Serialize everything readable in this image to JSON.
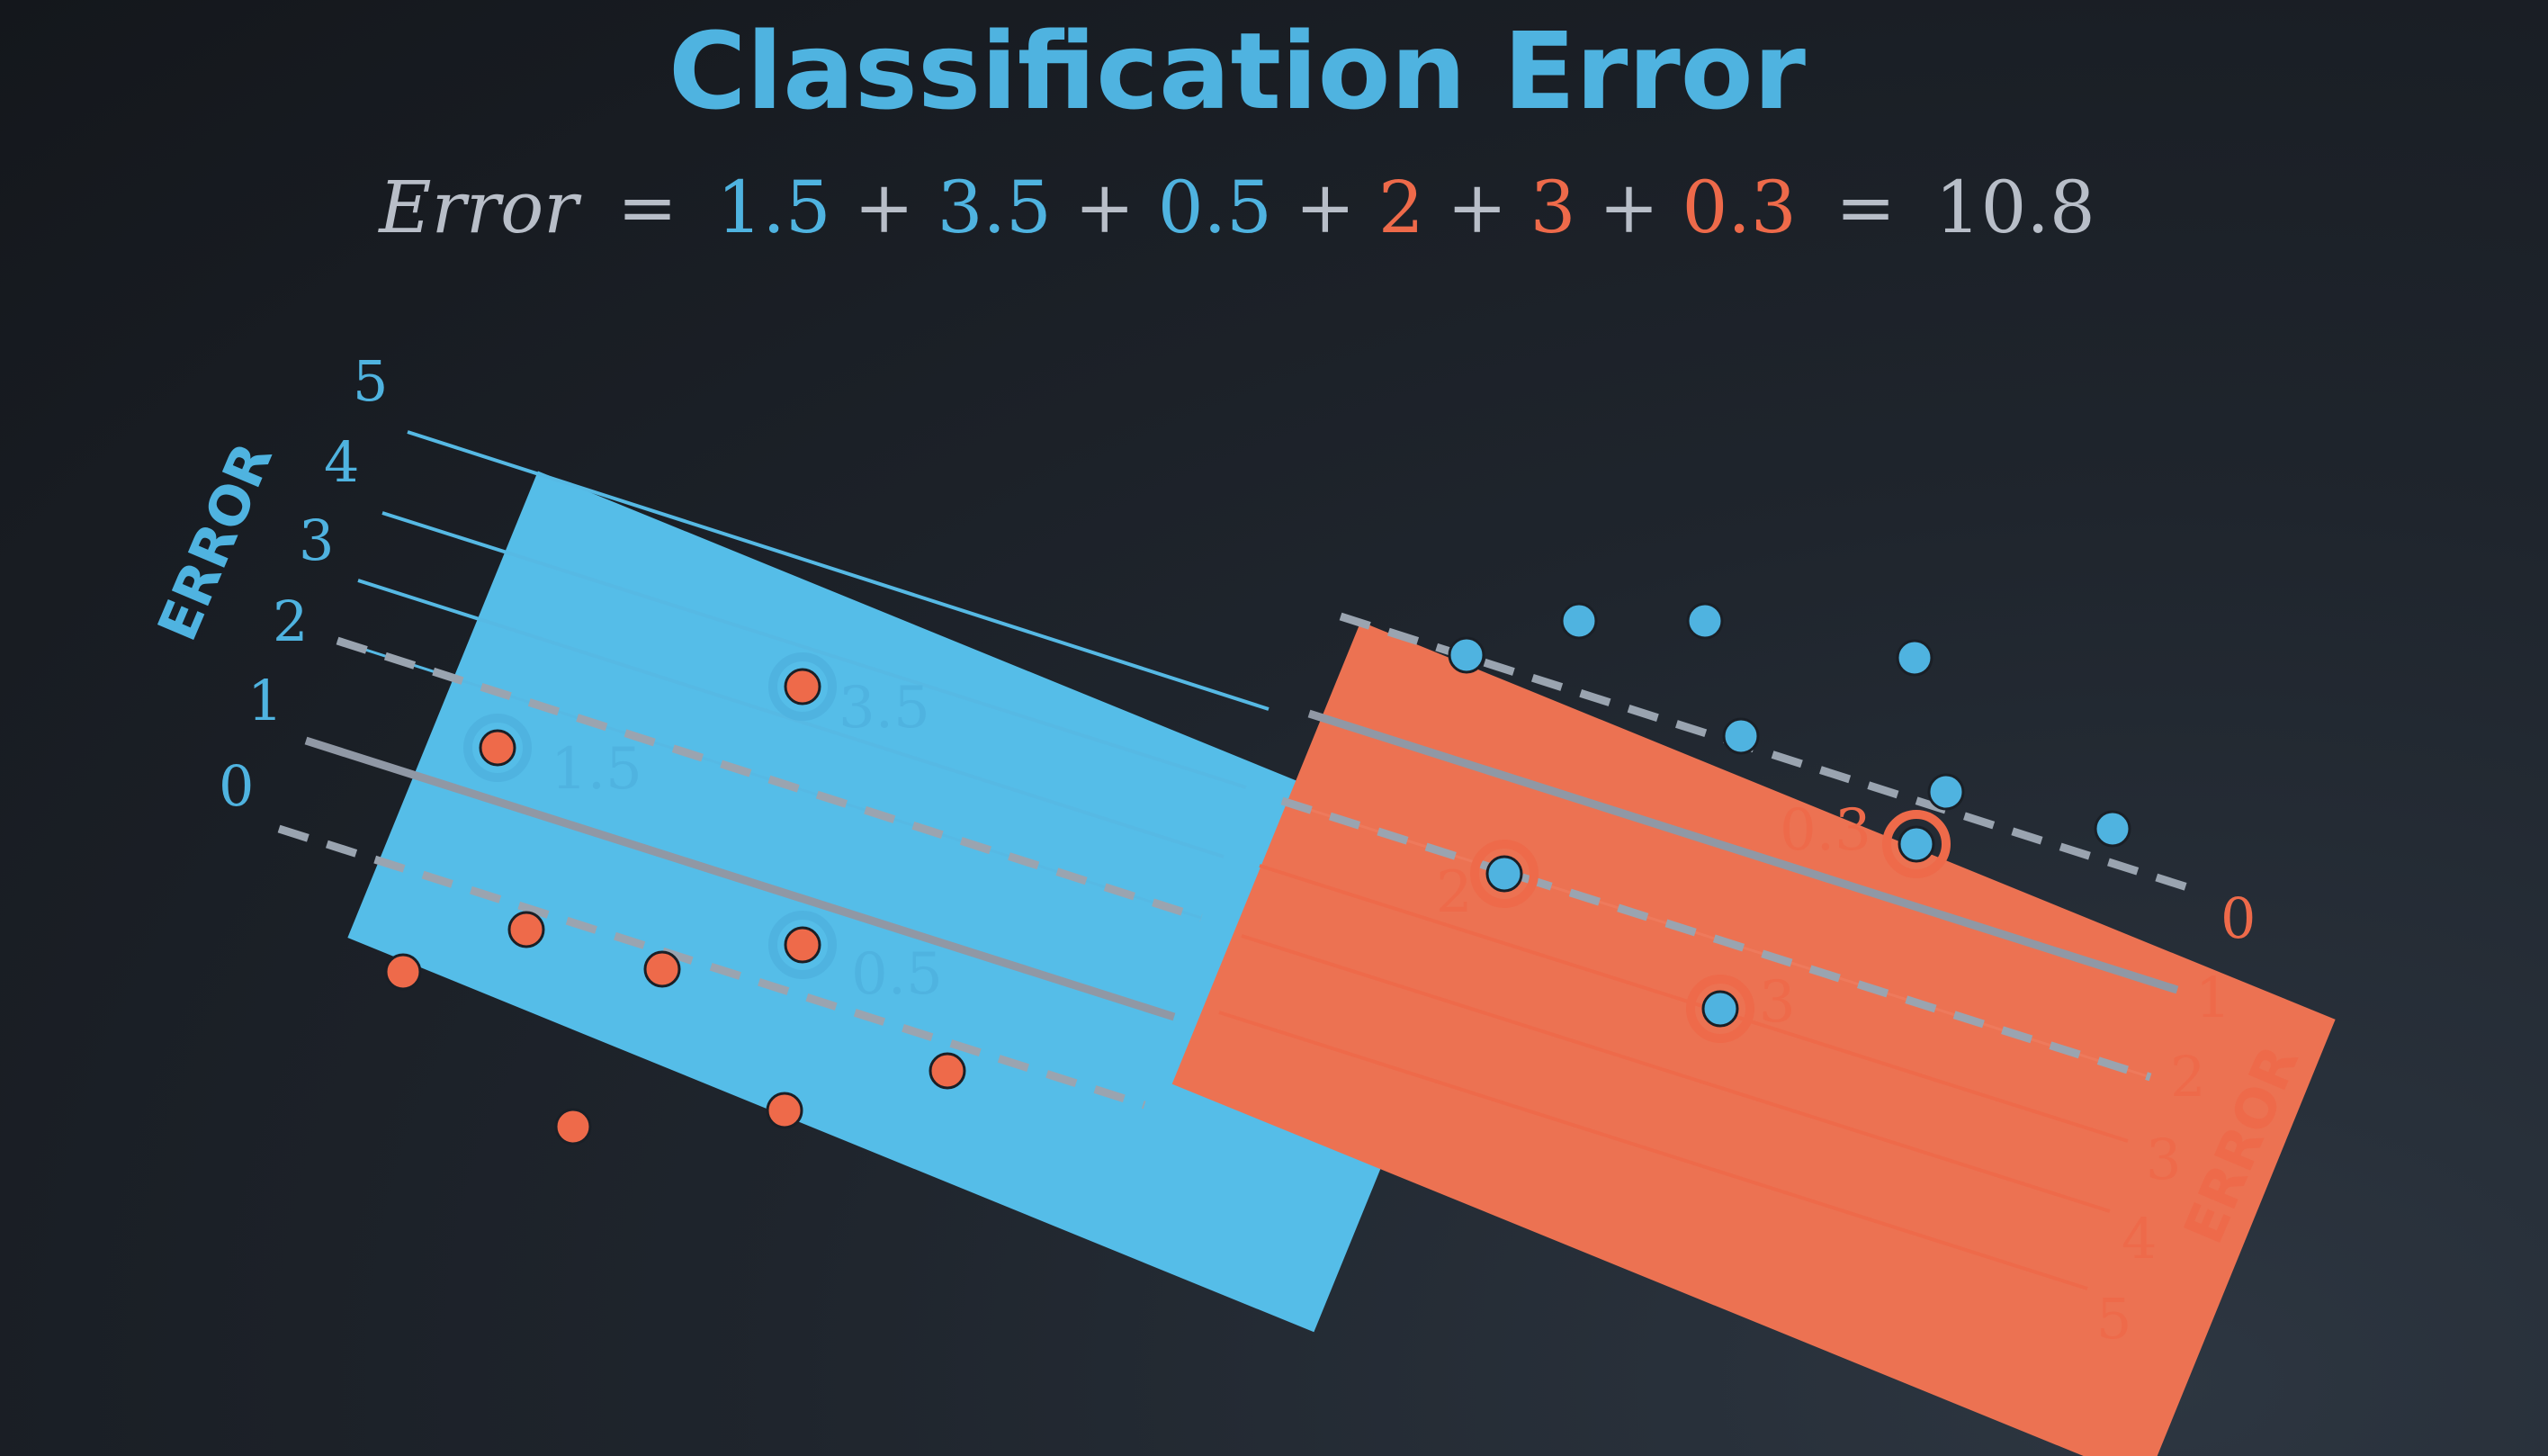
{
  "title": "Classification Error",
  "equation": {
    "lhs": "Error",
    "equals": "=",
    "plus": "+",
    "terms": [
      {
        "text": "1.5",
        "color": "#4fb3e0"
      },
      {
        "text": "3.5",
        "color": "#4fb3e0"
      },
      {
        "text": "0.5",
        "color": "#4fb3e0"
      },
      {
        "text": "2",
        "color": "#ee6a4a"
      },
      {
        "text": "3",
        "color": "#ee6a4a"
      },
      {
        "text": "0.3",
        "color": "#ee6a4a"
      }
    ],
    "total": "10.8"
  },
  "colors": {
    "title": "#4fb3e0",
    "blue": "#4fb3e0",
    "blue_light": "#5fbde8",
    "red": "#ee6a4a",
    "gray": "#8c95a3",
    "equation_gray": "#b8bec8"
  },
  "blue_region": {
    "axis_word": "ERROR",
    "ticks": [
      "0",
      "1",
      "2",
      "3",
      "4",
      "5"
    ]
  },
  "red_region": {
    "axis_word": "ERROR",
    "ticks": [
      "0",
      "1",
      "2",
      "3",
      "4",
      "5"
    ]
  },
  "misclassified_red_points": [
    {
      "label": "1.5",
      "error": 1.5
    },
    {
      "label": "3.5",
      "error": 3.5
    },
    {
      "label": "0.5",
      "error": 0.5
    }
  ],
  "misclassified_blue_points": [
    {
      "label": "2",
      "error": 2
    },
    {
      "label": "3",
      "error": 3
    },
    {
      "label": "0.3",
      "error": 0.3
    }
  ]
}
